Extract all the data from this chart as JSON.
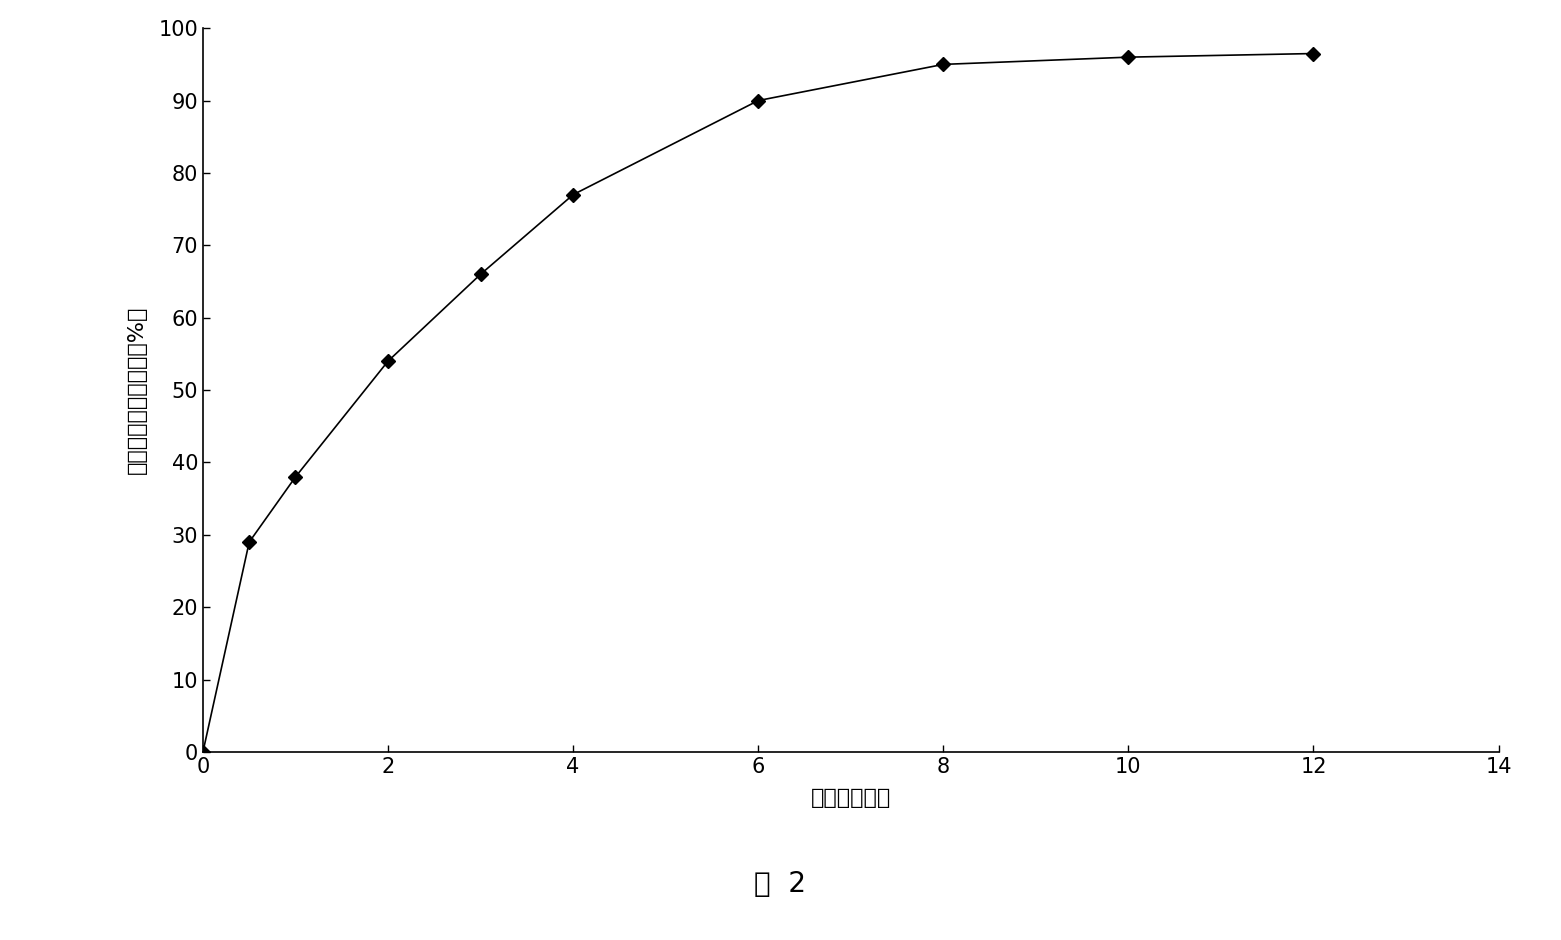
{
  "x": [
    0,
    0.5,
    1,
    2,
    3,
    4,
    6,
    8,
    10,
    12
  ],
  "y": [
    0,
    29,
    38,
    54,
    66,
    77,
    90,
    95,
    96,
    96.5
  ],
  "xlabel": "时间（小时）",
  "ylabel": "药物释放累计百分数（%）",
  "caption": "图  2",
  "xlim": [
    0,
    14
  ],
  "ylim": [
    0,
    100
  ],
  "xticks": [
    0,
    2,
    4,
    6,
    8,
    10,
    12,
    14
  ],
  "yticks": [
    0,
    10,
    20,
    30,
    40,
    50,
    60,
    70,
    80,
    90,
    100
  ],
  "line_color": "#000000",
  "marker": "D",
  "marker_size": 7,
  "marker_color": "#000000",
  "line_width": 1.2,
  "bg_color": "#ffffff",
  "axis_fontsize": 16,
  "tick_fontsize": 15,
  "caption_fontsize": 20
}
